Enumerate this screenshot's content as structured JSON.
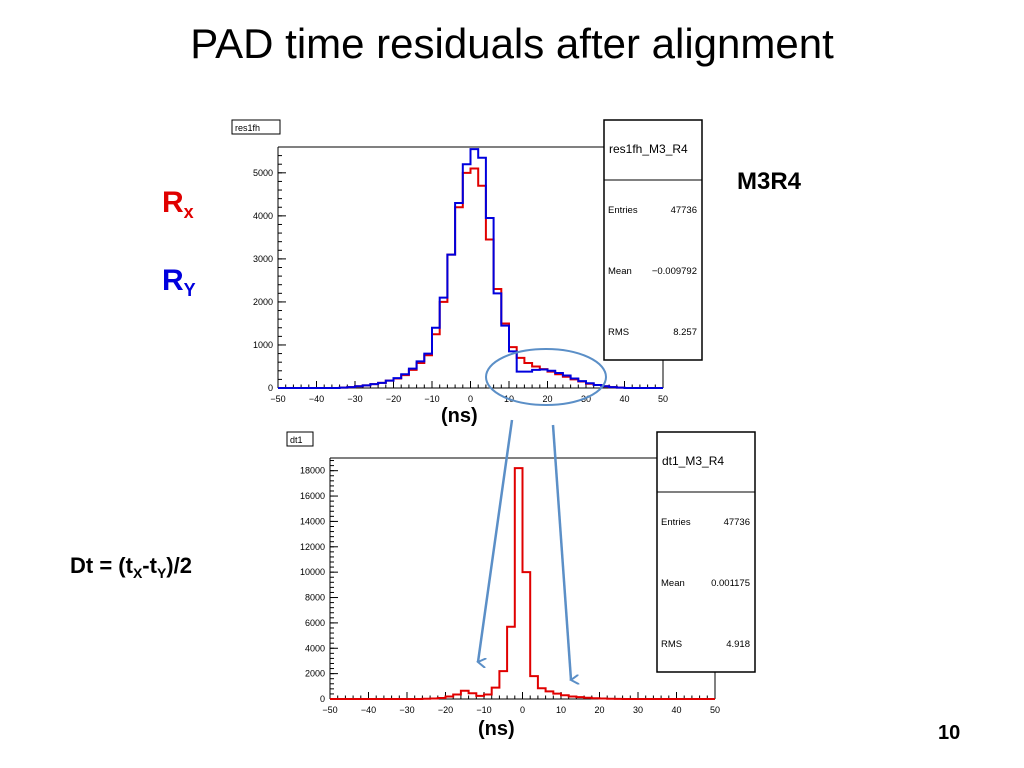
{
  "slide": {
    "title": "PAD time residuals after alignment",
    "page_number": "10",
    "label_rx_main": "R",
    "label_rx_sub": "x",
    "label_ry_main": "R",
    "label_ry_sub": "Y",
    "label_chamber": "M3R4",
    "formula_parts": [
      "Dt = (t",
      "X",
      "-t",
      "Y",
      ")/2"
    ],
    "unit_top": "(ns)",
    "unit_bottom": "(ns)",
    "colors": {
      "rx": "#e00000",
      "ry": "#0000dd",
      "annotation": "#5b8fc7"
    }
  },
  "chart_data": [
    {
      "type": "line",
      "name_tag": "res1fh",
      "xlim": [
        -50,
        50
      ],
      "ylim": [
        0,
        5600
      ],
      "xticks": [
        "-50",
        "-40",
        "-30",
        "-20",
        "-10",
        "0",
        "10",
        "20",
        "30",
        "40",
        "50"
      ],
      "yticks": [
        "0",
        "1000",
        "2000",
        "3000",
        "4000",
        "5000"
      ],
      "stats": {
        "title": "res1fh_M3_R4",
        "rows": [
          {
            "label": "Entries",
            "value": "47736"
          },
          {
            "label": "Mean",
            "value": "-0.009792"
          },
          {
            "label": "RMS",
            "value": "8.257"
          }
        ]
      },
      "series": [
        {
          "color": "#e00000",
          "bin_edges_start": -50,
          "bin_width": 2,
          "values": [
            0,
            0,
            0,
            0,
            0,
            0,
            0,
            0,
            10,
            20,
            40,
            60,
            90,
            120,
            170,
            220,
            300,
            420,
            580,
            760,
            1250,
            2000,
            3100,
            4200,
            5000,
            5100,
            4700,
            3450,
            2300,
            1500,
            950,
            700,
            580,
            500,
            440,
            380,
            320,
            260,
            200,
            150,
            100,
            70,
            40,
            20,
            10,
            0,
            0,
            0,
            0,
            0
          ]
        },
        {
          "color": "#0000dd",
          "bin_edges_start": -50,
          "bin_width": 2,
          "values": [
            0,
            0,
            0,
            0,
            0,
            0,
            0,
            0,
            10,
            20,
            40,
            60,
            90,
            120,
            170,
            230,
            320,
            450,
            620,
            800,
            1400,
            2100,
            3100,
            4300,
            5200,
            5550,
            5350,
            3950,
            2200,
            1450,
            850,
            380,
            380,
            420,
            430,
            400,
            350,
            290,
            220,
            160,
            110,
            70,
            40,
            20,
            10,
            0,
            0,
            0,
            0,
            0
          ]
        }
      ]
    },
    {
      "type": "line",
      "name_tag": "dt1",
      "xlim": [
        -50,
        50
      ],
      "ylim": [
        0,
        19000
      ],
      "xticks": [
        "-50",
        "-40",
        "-30",
        "-20",
        "-10",
        "0",
        "10",
        "20",
        "30",
        "40",
        "50"
      ],
      "yticks": [
        "0",
        "2000",
        "4000",
        "6000",
        "8000",
        "10000",
        "12000",
        "14000",
        "16000",
        "18000"
      ],
      "stats": {
        "title": "dt1_M3_R4",
        "rows": [
          {
            "label": "Entries",
            "value": "47736"
          },
          {
            "label": "Mean",
            "value": "0.001175"
          },
          {
            "label": "RMS",
            "value": "4.918"
          }
        ]
      },
      "series": [
        {
          "color": "#e00000",
          "bin_edges_start": -50,
          "bin_width": 2,
          "values": [
            0,
            0,
            0,
            0,
            0,
            0,
            0,
            0,
            0,
            0,
            0,
            0,
            20,
            40,
            80,
            200,
            350,
            650,
            450,
            250,
            350,
            900,
            2200,
            5700,
            18200,
            10000,
            1800,
            850,
            600,
            420,
            300,
            200,
            150,
            100,
            60,
            40,
            20,
            10,
            0,
            0,
            0,
            0,
            0,
            0,
            0,
            0,
            0,
            0,
            0,
            0
          ]
        }
      ]
    }
  ]
}
